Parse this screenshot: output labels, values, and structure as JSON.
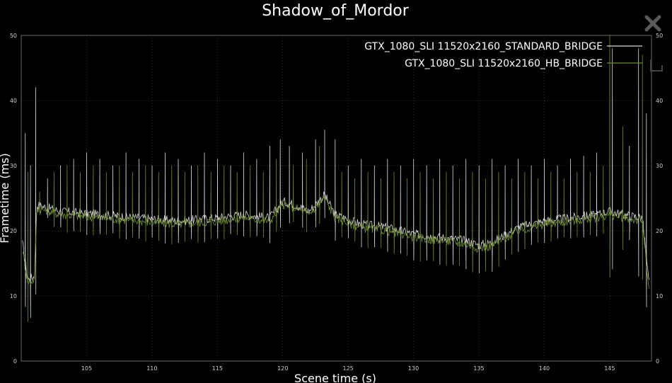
{
  "chart_data": {
    "type": "line",
    "title": "Shadow_of_Mordor",
    "xlabel": "Scene time (s)",
    "ylabel": "Frametime (ms)",
    "xlim": [
      100,
      148.2
    ],
    "ylim": [
      0,
      50
    ],
    "x_ticks": [
      105,
      110,
      115,
      120,
      125,
      130,
      135,
      140,
      145
    ],
    "y_ticks": [
      0,
      10,
      20,
      30,
      40,
      50
    ],
    "grid": true,
    "legend_position": "top-right",
    "series": [
      {
        "name": "GTX_1080_SLI 11520x2160_STANDARD_BRIDGE",
        "color": "#d8d8d8",
        "baseline": [
          [
            100.1,
            18
          ],
          [
            100.5,
            12.5
          ],
          [
            101,
            13
          ],
          [
            101.2,
            24
          ],
          [
            103,
            23
          ],
          [
            106,
            22.5
          ],
          [
            109,
            22
          ],
          [
            112,
            21.5
          ],
          [
            115,
            22
          ],
          [
            117,
            22.5
          ],
          [
            119,
            22
          ],
          [
            120,
            24.5
          ],
          [
            121,
            24
          ],
          [
            122,
            23
          ],
          [
            123.2,
            25.5
          ],
          [
            124,
            22.5
          ],
          [
            126,
            21
          ],
          [
            128,
            20.5
          ],
          [
            130,
            19.5
          ],
          [
            132,
            19
          ],
          [
            134,
            18.5
          ],
          [
            135,
            17.8
          ],
          [
            136,
            18.2
          ],
          [
            138,
            20.5
          ],
          [
            140,
            21.5
          ],
          [
            142,
            22
          ],
          [
            144,
            22.5
          ],
          [
            145,
            23
          ],
          [
            146,
            22.5
          ],
          [
            147.5,
            22
          ],
          [
            148,
            12
          ]
        ],
        "spikes": [
          [
            100.3,
            35
          ],
          [
            100.7,
            30
          ],
          [
            101.1,
            42
          ],
          [
            102,
            28
          ],
          [
            103,
            30
          ],
          [
            104,
            31
          ],
          [
            105,
            32
          ],
          [
            106,
            31
          ],
          [
            107,
            30
          ],
          [
            108,
            32
          ],
          [
            109,
            31
          ],
          [
            110,
            30
          ],
          [
            111,
            32
          ],
          [
            112,
            31
          ],
          [
            113,
            30
          ],
          [
            114,
            32
          ],
          [
            115,
            31
          ],
          [
            116,
            30
          ],
          [
            117,
            32
          ],
          [
            118,
            31
          ],
          [
            119,
            33
          ],
          [
            119.8,
            34
          ],
          [
            120.5,
            33
          ],
          [
            121.5,
            32
          ],
          [
            122.5,
            34
          ],
          [
            123.2,
            35.5
          ],
          [
            124,
            34
          ],
          [
            125,
            30
          ],
          [
            126,
            31
          ],
          [
            127,
            30
          ],
          [
            128,
            31
          ],
          [
            129,
            30
          ],
          [
            130,
            31
          ],
          [
            131,
            30
          ],
          [
            132,
            31
          ],
          [
            133,
            30
          ],
          [
            134,
            31
          ],
          [
            135,
            30
          ],
          [
            136,
            31
          ],
          [
            137,
            30
          ],
          [
            138,
            31
          ],
          [
            139,
            30
          ],
          [
            140,
            31
          ],
          [
            141,
            30
          ],
          [
            142,
            31
          ],
          [
            143,
            31.5
          ],
          [
            144,
            32
          ],
          [
            145.2,
            48
          ],
          [
            146.5,
            33
          ],
          [
            147.2,
            48
          ],
          [
            147.8,
            38
          ]
        ]
      },
      {
        "name": "GTX_1080_SLI 11520x2160_HB_BRIDGE",
        "color": "#6f8f2e",
        "baseline": [
          [
            100.1,
            17
          ],
          [
            100.5,
            12
          ],
          [
            101,
            12.5
          ],
          [
            101.2,
            23.5
          ],
          [
            103,
            22.5
          ],
          [
            106,
            22
          ],
          [
            109,
            21.5
          ],
          [
            112,
            21
          ],
          [
            115,
            21.5
          ],
          [
            117,
            22
          ],
          [
            119,
            21.5
          ],
          [
            120,
            24
          ],
          [
            121,
            23.5
          ],
          [
            122,
            22.5
          ],
          [
            123.2,
            25
          ],
          [
            124,
            22
          ],
          [
            126,
            20.5
          ],
          [
            128,
            20
          ],
          [
            130,
            19
          ],
          [
            132,
            18.5
          ],
          [
            134,
            18
          ],
          [
            135,
            17.3
          ],
          [
            136,
            17.7
          ],
          [
            138,
            20
          ],
          [
            140,
            21
          ],
          [
            142,
            21.5
          ],
          [
            144,
            22
          ],
          [
            145,
            22.5
          ],
          [
            146,
            22
          ],
          [
            147.5,
            21.5
          ],
          [
            148,
            11
          ]
        ],
        "spikes": [
          [
            100.5,
            29
          ],
          [
            101.4,
            26
          ],
          [
            102.5,
            29
          ],
          [
            103.5,
            30
          ],
          [
            104.5,
            29
          ],
          [
            105.5,
            30
          ],
          [
            106.5,
            29
          ],
          [
            107.5,
            30
          ],
          [
            108.5,
            29
          ],
          [
            109.5,
            30
          ],
          [
            110.5,
            29
          ],
          [
            111.5,
            30
          ],
          [
            112.5,
            29
          ],
          [
            113.5,
            30
          ],
          [
            114.5,
            29
          ],
          [
            115.5,
            30
          ],
          [
            116.5,
            29
          ],
          [
            117.5,
            30
          ],
          [
            118.5,
            29
          ],
          [
            119.5,
            31
          ],
          [
            120.8,
            30
          ],
          [
            121.8,
            31
          ],
          [
            122.8,
            33
          ],
          [
            124.5,
            29
          ],
          [
            125.5,
            28
          ],
          [
            126.5,
            29
          ],
          [
            127.5,
            28
          ],
          [
            128.5,
            29
          ],
          [
            129.5,
            28
          ],
          [
            130.5,
            29
          ],
          [
            131.5,
            28
          ],
          [
            132.5,
            29
          ],
          [
            133.5,
            28
          ],
          [
            134.5,
            29
          ],
          [
            135.5,
            28
          ],
          [
            136.5,
            29
          ],
          [
            137.5,
            28
          ],
          [
            138.5,
            29
          ],
          [
            139.5,
            28
          ],
          [
            140.5,
            29
          ],
          [
            141.5,
            28
          ],
          [
            142.5,
            29
          ],
          [
            143.5,
            29
          ],
          [
            144.5,
            30
          ],
          [
            145,
            50
          ],
          [
            146,
            36
          ],
          [
            147.5,
            47
          ]
        ]
      }
    ]
  }
}
